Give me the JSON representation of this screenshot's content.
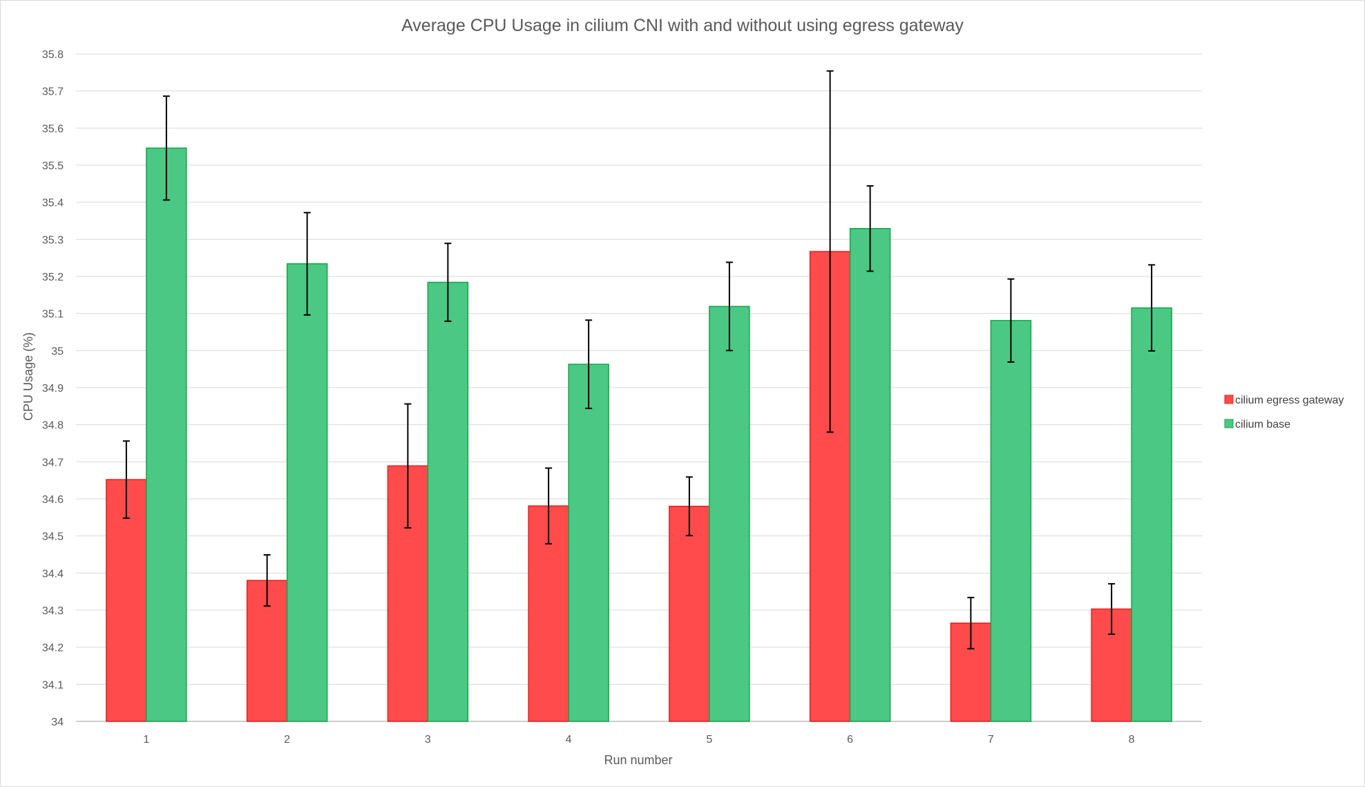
{
  "chart_data": {
    "type": "bar",
    "title": "Average CPU Usage in cilium CNI with and without using egress gateway",
    "xlabel": "Run number",
    "ylabel": "CPU Usage (%)",
    "categories": [
      "1",
      "2",
      "3",
      "4",
      "5",
      "6",
      "7",
      "8"
    ],
    "ylim": [
      34,
      35.8
    ],
    "ytick_step": 0.1,
    "ytick_labels": [
      "34",
      "34.1",
      "34.2",
      "34.3",
      "34.4",
      "34.5",
      "34.6",
      "34.7",
      "34.8",
      "34.9",
      "35",
      "35.1",
      "35.2",
      "35.3",
      "35.4",
      "35.5",
      "35.6",
      "35.7",
      "35.8"
    ],
    "grid": true,
    "legend_position": "right",
    "series": [
      {
        "name": "cilium egress gateway",
        "color": "#ff4b4b",
        "edge_color": "#e02020",
        "values": [
          34.652,
          34.38,
          34.689,
          34.581,
          34.58,
          35.267,
          34.265,
          34.303
        ],
        "errors": [
          0.104,
          0.069,
          0.167,
          0.102,
          0.079,
          0.487,
          0.069,
          0.068
        ]
      },
      {
        "name": "cilium base",
        "color": "#4bc883",
        "edge_color": "#17a34a",
        "values": [
          35.546,
          35.234,
          35.184,
          34.963,
          35.119,
          35.329,
          35.081,
          35.115
        ],
        "errors": [
          0.14,
          0.138,
          0.105,
          0.119,
          0.119,
          0.115,
          0.112,
          0.116
        ]
      }
    ]
  }
}
